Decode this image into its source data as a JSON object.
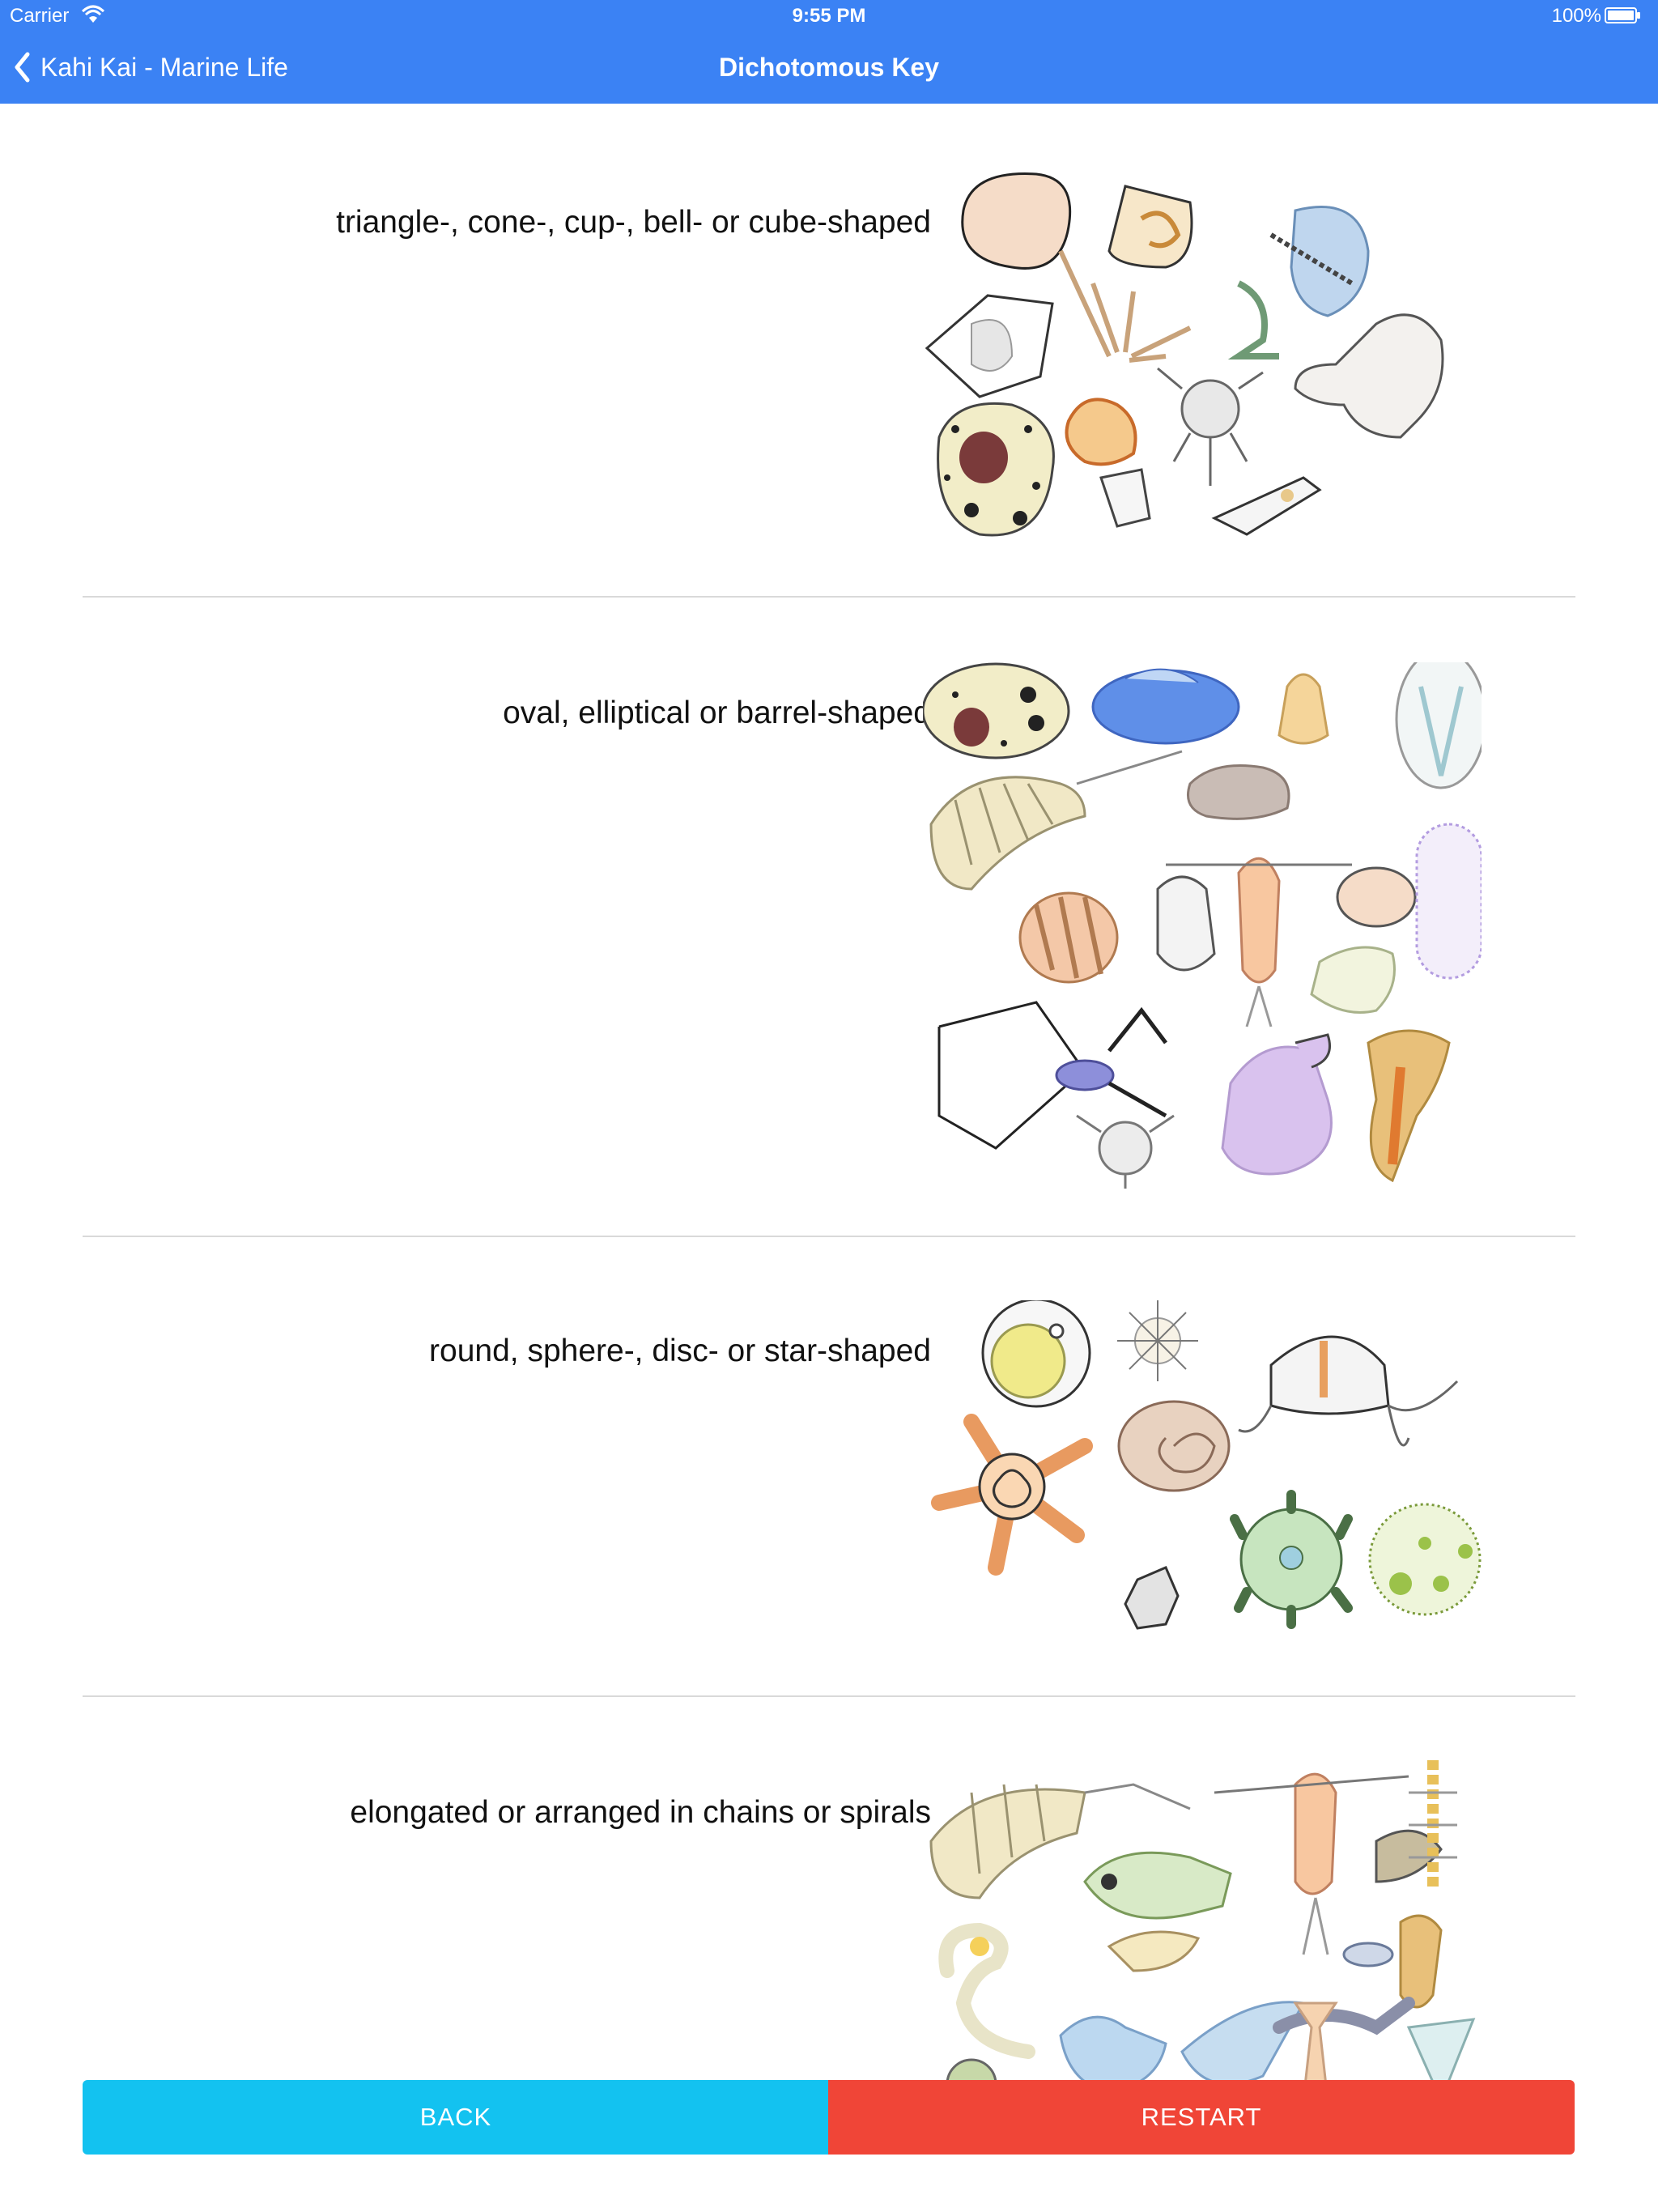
{
  "status": {
    "carrier": "Carrier",
    "time": "9:55 PM",
    "battery": "100%"
  },
  "nav": {
    "back_label": "Kahi Kai - Marine Life",
    "title": "Dichotomous Key"
  },
  "options": [
    {
      "label": "triangle-, cone-, cup-, bell- or cube-shaped"
    },
    {
      "label": "oval, elliptical or barrel-shaped"
    },
    {
      "label": "round, sphere-, disc- or star-shaped"
    },
    {
      "label": "elongated or arranged in chains or spirals"
    }
  ],
  "buttons": {
    "back": "BACK",
    "restart": "RESTART"
  },
  "colors": {
    "nav_bar": "#3B82F4",
    "back_button": "#13C2F0",
    "restart_button": "#F04537"
  }
}
